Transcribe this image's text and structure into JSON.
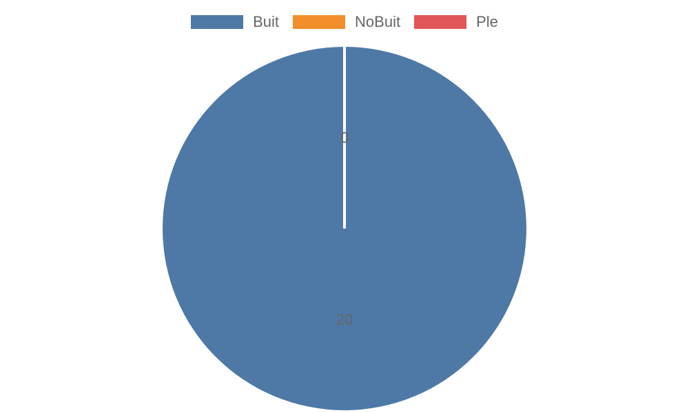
{
  "chart_data": {
    "type": "pie",
    "categories": [
      "Buit",
      "NoBuit",
      "Ple"
    ],
    "values": [
      20,
      0,
      0
    ],
    "colors": [
      "#4e79a7",
      "#f28e2b",
      "#e15759"
    ],
    "data_labels": [
      "20",
      "0",
      "0"
    ],
    "legend_position": "top-center",
    "slice_border_color": "#ffffff"
  }
}
